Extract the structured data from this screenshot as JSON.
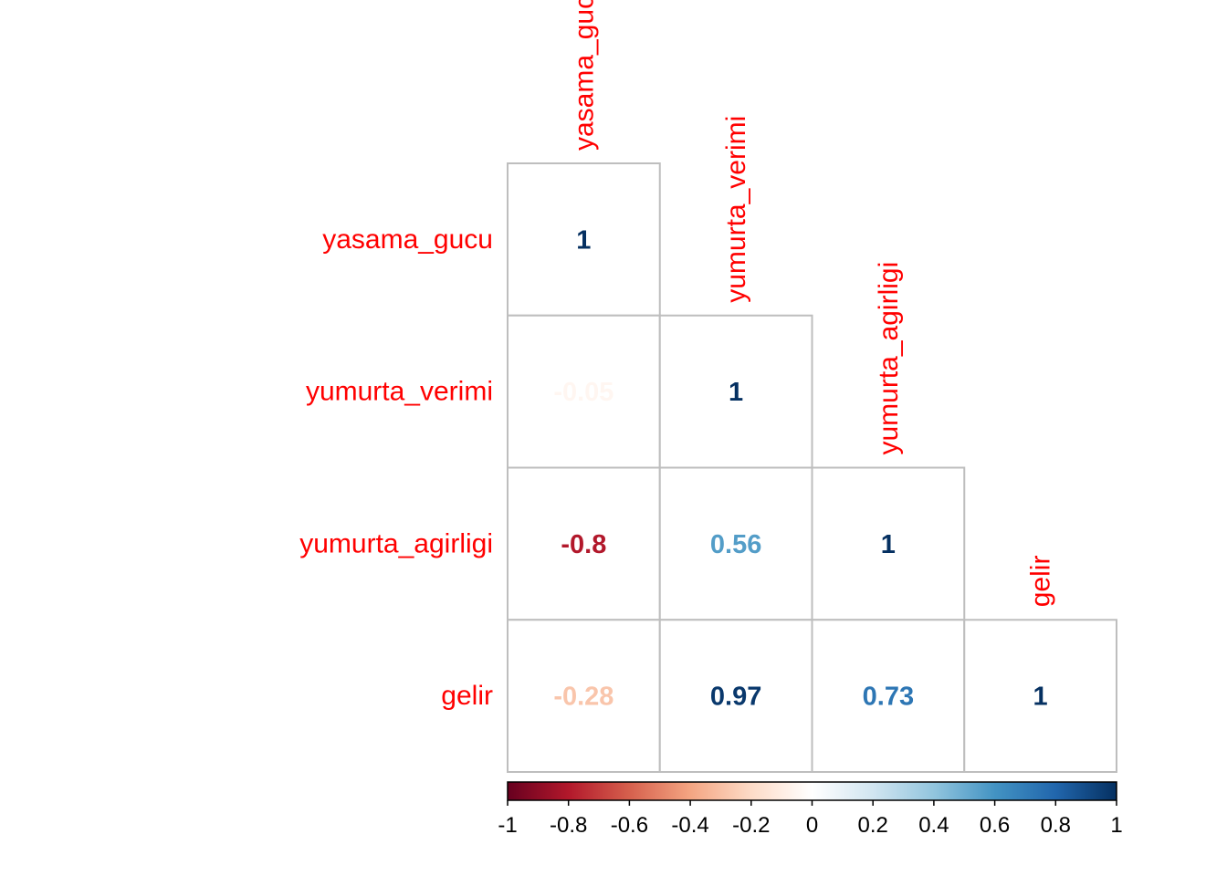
{
  "chart_data": {
    "type": "heatmap",
    "layout": "lower-triangle correlation matrix",
    "variables": [
      "yasama_gucu",
      "yumurta_verimi",
      "yumurta_agirligi",
      "gelir"
    ],
    "matrix": [
      [
        1,
        null,
        null,
        null
      ],
      [
        -0.05,
        1,
        null,
        null
      ],
      [
        -0.8,
        0.56,
        1,
        null
      ],
      [
        -0.28,
        0.97,
        0.73,
        1
      ]
    ],
    "cell_labels": [
      [
        "1",
        "",
        "",
        ""
      ],
      [
        "-0.05",
        "1",
        "",
        ""
      ],
      [
        "-0.8",
        "0.56",
        "1",
        ""
      ],
      [
        "-0.28",
        "0.97",
        "0.73",
        "1"
      ]
    ],
    "colorbar": {
      "range": [
        -1,
        1
      ],
      "ticks": [
        "-1",
        "-0.8",
        "-0.6",
        "-0.4",
        "-0.2",
        "0",
        "0.2",
        "0.4",
        "0.6",
        "0.8",
        "1"
      ],
      "colors": [
        "#67001F",
        "#B2182B",
        "#D6604D",
        "#F4A582",
        "#FDDBC7",
        "#FFFFFF",
        "#D1E5F0",
        "#92C5DE",
        "#4393C3",
        "#2166AC",
        "#053061"
      ]
    },
    "label_color": "#FF0000",
    "grid_color": "#BEBEBE"
  }
}
